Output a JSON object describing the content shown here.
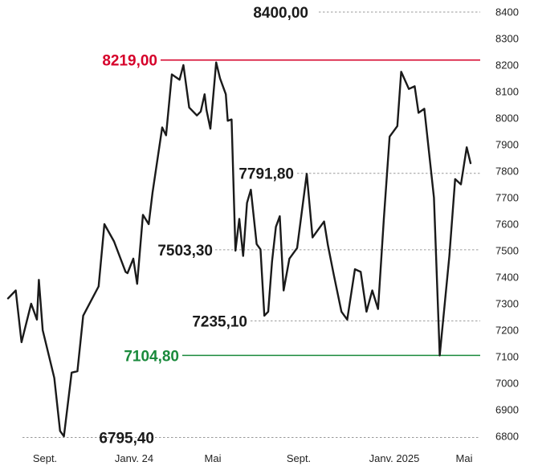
{
  "chart_data": {
    "type": "line",
    "title": "",
    "xlabel": "",
    "ylabel": "",
    "ylim": [
      6800,
      8400
    ],
    "y_ticks": [
      6800,
      6900,
      7000,
      7100,
      7200,
      7300,
      7400,
      7500,
      7600,
      7700,
      7800,
      7900,
      8000,
      8100,
      8200,
      8300,
      8400
    ],
    "x_ticks": [
      "Sept.",
      "Janv. 24",
      "Mai",
      "Sept.",
      "Janv. 2025",
      "Mai"
    ],
    "grid": false,
    "colors": {
      "line": "#1a1a1a",
      "resistance": "#d6002a",
      "support": "#1a8a3c",
      "guide": "#9a9a9a"
    },
    "annotations": [
      {
        "label": "8400,00",
        "value": 8400.0,
        "style": "dotted",
        "color": "#1a1a1a"
      },
      {
        "label": "8219,00",
        "value": 8219.0,
        "style": "solid",
        "color": "#d6002a"
      },
      {
        "label": "7791,80",
        "value": 7791.8,
        "style": "dotted",
        "color": "#1a1a1a"
      },
      {
        "label": "7503,30",
        "value": 7503.3,
        "style": "dotted",
        "color": "#1a1a1a"
      },
      {
        "label": "7235,10",
        "value": 7235.1,
        "style": "dotted",
        "color": "#1a1a1a"
      },
      {
        "label": "7104,80",
        "value": 7104.8,
        "style": "solid",
        "color": "#1a8a3c"
      },
      {
        "label": "6795,40",
        "value": 6795.4,
        "style": "dotted",
        "color": "#1a1a1a"
      }
    ],
    "series": [
      {
        "x": [
          0.0,
          0.4,
          0.7,
          1.2,
          1.5,
          1.6,
          1.8,
          2.4,
          2.7,
          2.9,
          3.3,
          3.6,
          3.9,
          4.7,
          5.0,
          5.5,
          6.1,
          6.2,
          6.5,
          6.7,
          7.0,
          7.3,
          7.5,
          8.0,
          8.2,
          8.5,
          8.9,
          9.1,
          9.4,
          9.8,
          10.0,
          10.2,
          10.3,
          10.5,
          10.8,
          11.0,
          11.2,
          11.3,
          11.4,
          11.6,
          11.8,
          12.0,
          12.2,
          12.4,
          12.6,
          12.9,
          13.1,
          13.3,
          13.5,
          13.7,
          13.9,
          14.1,
          14.3,
          14.6,
          15.0,
          15.5,
          15.8,
          16.1,
          16.4,
          16.6,
          16.9,
          17.3,
          17.6,
          18.0,
          18.3,
          18.6,
          18.9,
          19.2,
          19.5,
          19.8,
          20.2,
          20.4,
          20.8,
          21.1,
          21.3
        ],
        "values": [
          7320,
          7350,
          7155,
          7300,
          7240,
          7390,
          7200,
          7020,
          6820,
          6800,
          7040,
          7045,
          7255,
          7365,
          7600,
          7535,
          7420,
          7415,
          7470,
          7375,
          7635,
          7600,
          7720,
          7965,
          7935,
          8165,
          8145,
          8200,
          8040,
          8010,
          8025,
          8090,
          8030,
          7960,
          8210,
          8150,
          8110,
          8090,
          7990,
          7995,
          7500,
          7620,
          7480,
          7680,
          7730,
          7525,
          7505,
          7255,
          7270,
          7460,
          7590,
          7630,
          7350,
          7470,
          7510,
          7790,
          7550,
          7580,
          7610,
          7520,
          7410,
          7270,
          7240,
          7430,
          7420,
          7270,
          7350,
          7280,
          7620,
          7930,
          7970,
          8175,
          8110,
          8120,
          8020
        ]
      }
    ],
    "series_tail": {
      "x": [
        21.6,
        22.1,
        22.4,
        22.9,
        23.2,
        23.5,
        23.8,
        24.0
      ],
      "values": [
        8035,
        7700,
        7105,
        7480,
        7770,
        7750,
        7890,
        7830
      ]
    }
  }
}
